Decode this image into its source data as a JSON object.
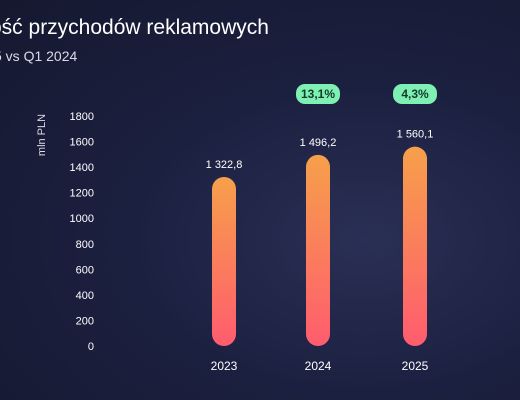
{
  "header": {
    "title": "ość przychodów reklamowych",
    "subtitle": "5 vs Q1 2024"
  },
  "chart_data": {
    "type": "bar",
    "categories": [
      "2023",
      "2024",
      "2025"
    ],
    "values": [
      1322.8,
      1496.2,
      1560.1
    ],
    "value_labels": [
      "1 322,8",
      "1 496,2",
      "1 560,1"
    ],
    "growth_badges": [
      "",
      "13,1%",
      "4,3%"
    ],
    "ylabel": "mln PLN",
    "ylim": [
      0,
      1800
    ],
    "yticks": [
      0,
      200,
      400,
      600,
      800,
      1000,
      1200,
      1400,
      1600,
      1800
    ],
    "grid": false,
    "colors": {
      "bar_top": "#f6a04a",
      "bar_bottom": "#ff5c6e",
      "badge_fill": "#7ff0b4",
      "badge_text": "#123b2b"
    }
  }
}
